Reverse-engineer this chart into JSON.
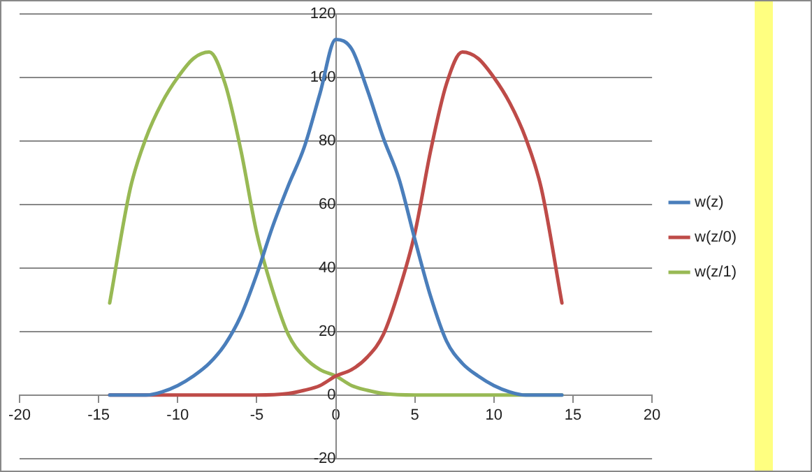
{
  "chart_data": {
    "type": "line",
    "xlim": [
      -20,
      20
    ],
    "xticks": [
      -20,
      -15,
      -10,
      -5,
      0,
      5,
      10,
      15,
      20
    ],
    "ylim": [
      -20,
      120
    ],
    "yticks": [
      -20,
      0,
      20,
      40,
      60,
      80,
      100,
      120
    ],
    "grid": "y",
    "legend": "right",
    "marker": "none",
    "line_style": "solid",
    "series": [
      {
        "name": "w(z)",
        "color": "#4a7ebb",
        "x": [
          -14.3,
          -12,
          -11,
          -10,
          -9,
          -8,
          -7,
          -6,
          -5,
          -4,
          -3,
          -2,
          -1,
          0,
          1,
          2,
          3,
          4,
          5,
          6,
          7,
          8,
          9,
          10,
          11,
          12,
          14.3
        ],
        "values": [
          0,
          0,
          1,
          3,
          6,
          10,
          16,
          25,
          38,
          53,
          66,
          78,
          95,
          112,
          109,
          96,
          81,
          68,
          49,
          31,
          17,
          10,
          6,
          3,
          1,
          0,
          0
        ]
      },
      {
        "name": "w(z/0)",
        "color": "#be4b48",
        "x": [
          -14.3,
          -5,
          -3,
          -2,
          -1,
          0,
          1,
          2,
          3,
          4,
          5,
          6,
          7,
          8,
          9,
          10,
          11,
          12,
          13,
          14.3
        ],
        "values": [
          0,
          0,
          0.5,
          1.5,
          3,
          6,
          8,
          12,
          19,
          33,
          51,
          77,
          98,
          108,
          106,
          100,
          92,
          81,
          65,
          29
        ]
      },
      {
        "name": "w(z/1)",
        "color": "#98b954",
        "x": [
          -14.3,
          -13,
          -12,
          -11,
          -10,
          -9,
          -8,
          -7,
          -6,
          -5,
          -4,
          -3,
          -2,
          -1,
          0,
          1,
          2,
          3,
          5,
          14.3
        ],
        "values": [
          29,
          65,
          81,
          92,
          100,
          106,
          108,
          98,
          77,
          51,
          33,
          19,
          12,
          8,
          6,
          3,
          1.5,
          0.5,
          0,
          0
        ]
      }
    ]
  }
}
